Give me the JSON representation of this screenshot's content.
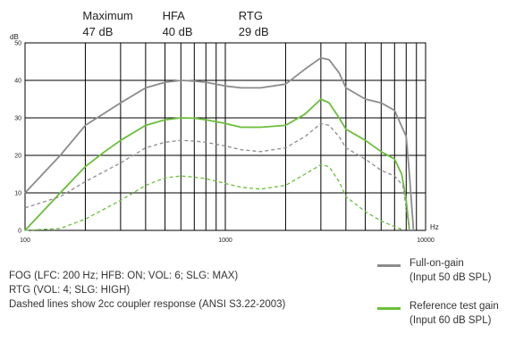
{
  "chart_data": {
    "type": "line",
    "x_scale": "log",
    "xlim": [
      100,
      10000
    ],
    "ylim": [
      0,
      50
    ],
    "y_ticks": [
      0,
      10,
      20,
      30,
      40,
      50
    ],
    "x_tick_labels": [
      {
        "value": 100,
        "label": "100"
      },
      {
        "value": 1000,
        "label": "1000"
      },
      {
        "value": 10000,
        "label": "10000"
      }
    ],
    "ylabel": "dB",
    "xlabel": "Hz",
    "grid": true,
    "header_markers": [
      {
        "x": 200,
        "name": "Maximum",
        "value": "47 dB"
      },
      {
        "x": 500,
        "name": "HFA",
        "value": "40 dB"
      },
      {
        "x": 1200,
        "name": "RTG",
        "value": "29 dB"
      }
    ],
    "series": [
      {
        "color": "#8c8c8c",
        "dashed": false,
        "points": [
          [
            100,
            10
          ],
          [
            150,
            20
          ],
          [
            200,
            28
          ],
          [
            300,
            34
          ],
          [
            400,
            38
          ],
          [
            500,
            39.5
          ],
          [
            600,
            40
          ],
          [
            700,
            39.8
          ],
          [
            800,
            39.5
          ],
          [
            1000,
            38.5
          ],
          [
            1200,
            38
          ],
          [
            1500,
            38
          ],
          [
            2000,
            39
          ],
          [
            2500,
            43
          ],
          [
            3000,
            46
          ],
          [
            3300,
            45.5
          ],
          [
            3700,
            42
          ],
          [
            4000,
            38
          ],
          [
            5000,
            35
          ],
          [
            6000,
            34
          ],
          [
            7000,
            32
          ],
          [
            8000,
            25
          ],
          [
            8300,
            15
          ],
          [
            8700,
            0
          ]
        ]
      },
      {
        "color": "#6abf3a",
        "dashed": false,
        "points": [
          [
            100,
            0
          ],
          [
            150,
            10
          ],
          [
            200,
            17
          ],
          [
            250,
            21
          ],
          [
            300,
            24
          ],
          [
            400,
            28
          ],
          [
            500,
            29.5
          ],
          [
            600,
            30
          ],
          [
            700,
            29.9
          ],
          [
            800,
            29.5
          ],
          [
            1000,
            28.5
          ],
          [
            1200,
            27.5
          ],
          [
            1500,
            27.5
          ],
          [
            2000,
            28
          ],
          [
            2500,
            31
          ],
          [
            3000,
            35
          ],
          [
            3300,
            34
          ],
          [
            3700,
            30
          ],
          [
            4000,
            27
          ],
          [
            5000,
            24
          ],
          [
            6000,
            21
          ],
          [
            7000,
            19
          ],
          [
            7600,
            15
          ],
          [
            8000,
            8
          ],
          [
            8300,
            0
          ]
        ]
      },
      {
        "color": "#8c8c8c",
        "dashed": true,
        "points": [
          [
            100,
            6
          ],
          [
            150,
            9
          ],
          [
            200,
            13
          ],
          [
            300,
            18
          ],
          [
            400,
            22
          ],
          [
            500,
            23.5
          ],
          [
            600,
            24
          ],
          [
            700,
            23.8
          ],
          [
            800,
            23.5
          ],
          [
            1000,
            22.5
          ],
          [
            1200,
            21.5
          ],
          [
            1500,
            21
          ],
          [
            2000,
            22
          ],
          [
            2500,
            25
          ],
          [
            3000,
            28.5
          ],
          [
            3300,
            28
          ],
          [
            3700,
            25
          ],
          [
            4000,
            22
          ],
          [
            5000,
            19
          ],
          [
            6000,
            16
          ],
          [
            7000,
            14.5
          ],
          [
            7700,
            12
          ],
          [
            8000,
            6
          ],
          [
            8300,
            0
          ]
        ]
      },
      {
        "color": "#6abf3a",
        "dashed": true,
        "points": [
          [
            100,
            0
          ],
          [
            150,
            0.5
          ],
          [
            200,
            3
          ],
          [
            300,
            8
          ],
          [
            400,
            12
          ],
          [
            500,
            14
          ],
          [
            600,
            14.5
          ],
          [
            700,
            14.2
          ],
          [
            800,
            13.8
          ],
          [
            1000,
            12.5
          ],
          [
            1200,
            11.5
          ],
          [
            1500,
            11
          ],
          [
            2000,
            12
          ],
          [
            2500,
            15
          ],
          [
            3000,
            17.5
          ],
          [
            3300,
            17
          ],
          [
            3700,
            13
          ],
          [
            4000,
            9
          ],
          [
            5000,
            5
          ],
          [
            6000,
            2.5
          ],
          [
            7000,
            1
          ],
          [
            7800,
            0
          ]
        ]
      }
    ]
  },
  "notes": [
    "FOG (LFC: 200 Hz; HFB: ON; VOL: 6; SLG: MAX)",
    "RTG (VOL: 4; SLG: HIGH)",
    "Dashed lines show 2cc coupler response (ANSI S3.22-2003)"
  ],
  "legend": [
    {
      "color": "#8c8c8c",
      "line1": "Full-on-gain",
      "line2": "(Input 50 dB SPL)"
    },
    {
      "color": "#6abf3a",
      "line1": "Reference test gain",
      "line2": "(Input 60 dB SPL)"
    }
  ]
}
